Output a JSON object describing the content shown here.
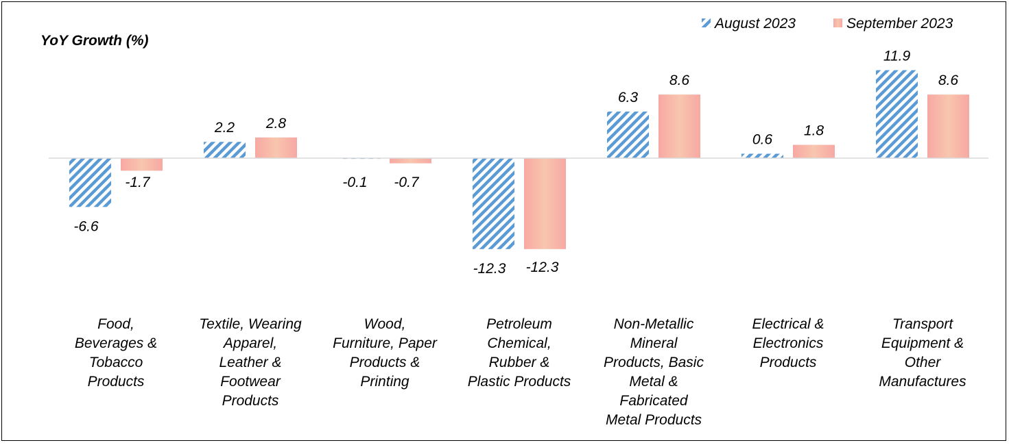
{
  "chart_data": {
    "type": "bar",
    "title": "",
    "ylabel": "YoY Growth (%)",
    "xlabel": "",
    "ylim": [
      -17,
      17
    ],
    "grid": false,
    "legend_position": "top-right",
    "categories": [
      "Food, Beverages & Tobacco Products",
      "Textile, Wearing Apparel, Leather & Footwear Products",
      "Wood, Furniture, Paper Products & Printing",
      "Petroleum Chemical, Rubber & Plastic Products",
      "Non-Metallic Mineral Products, Basic Metal & Fabricated Metal Products",
      "Electrical & Electronics Products",
      "Transport Equipment & Other Manufactures"
    ],
    "category_lines": [
      [
        "Food,",
        "Beverages &",
        "Tobacco",
        "Products"
      ],
      [
        "Textile, Wearing",
        "Apparel,",
        "Leather &",
        "Footwear",
        "Products"
      ],
      [
        "Wood,",
        "Furniture, Paper",
        "Products &",
        "Printing"
      ],
      [
        "Petroleum",
        "Chemical,",
        "Rubber &",
        "Plastic Products"
      ],
      [
        "Non-Metallic",
        "Mineral",
        "Products, Basic",
        "Metal &",
        "Fabricated",
        "Metal Products"
      ],
      [
        "Electrical &",
        "Electronics",
        "Products"
      ],
      [
        "Transport",
        "Equipment &",
        "Other",
        "Manufactures"
      ]
    ],
    "series": [
      {
        "name": "August 2023",
        "values": [
          -6.6,
          2.2,
          -0.1,
          -12.3,
          6.3,
          0.6,
          11.9
        ],
        "labels": [
          "-6.6",
          "2.2",
          "-0.1",
          "-12.3",
          "6.3",
          "0.6",
          "11.9"
        ],
        "color": "#5b9bd5"
      },
      {
        "name": "September 2023",
        "values": [
          -1.7,
          2.8,
          -0.7,
          -12.3,
          8.6,
          1.8,
          8.6
        ],
        "labels": [
          "-1.7",
          "2.8",
          "-0.7",
          "-12.3",
          "8.6",
          "1.8",
          "8.6"
        ],
        "color": "#f4a8a0"
      }
    ]
  }
}
